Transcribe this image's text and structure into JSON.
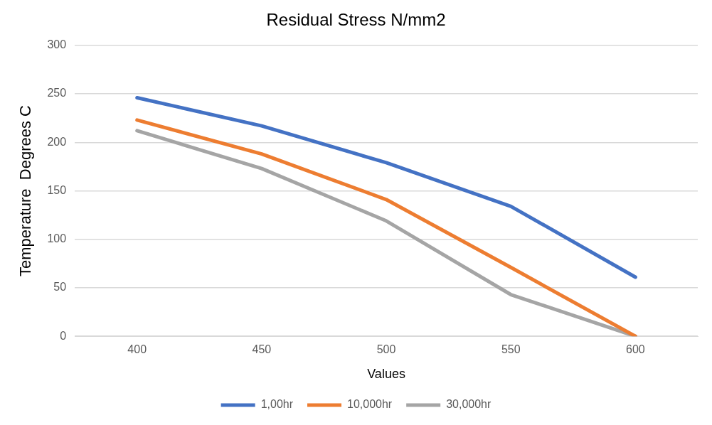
{
  "chart_data": {
    "type": "line",
    "title": "Residual Stress N/mm2",
    "xlabel": "Values",
    "ylabel": "Temperature  Degrees C",
    "categories": [
      "400",
      "450",
      "500",
      "550",
      "600"
    ],
    "series": [
      {
        "name": "1,00hr",
        "color": "#4472c4",
        "values": [
          246,
          217,
          179,
          134,
          61
        ]
      },
      {
        "name": "10,000hr",
        "color": "#ed7d31",
        "values": [
          223,
          188,
          141,
          71,
          0
        ]
      },
      {
        "name": "30,000hr",
        "color": "#a5a5a5",
        "values": [
          212,
          173,
          119,
          43,
          0
        ]
      }
    ],
    "ylim": [
      0,
      300
    ],
    "yticks": [
      0,
      50,
      100,
      150,
      200,
      250,
      300
    ],
    "grid": "y",
    "legend": "bottom",
    "marker": "none",
    "line_style": "solid"
  }
}
